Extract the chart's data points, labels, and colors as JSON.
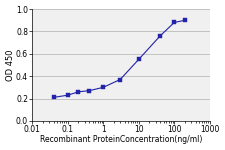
{
  "x": [
    0.04,
    0.1,
    0.2,
    0.4,
    1.0,
    3.0,
    10.0,
    40.0,
    100.0,
    200.0
  ],
  "y": [
    0.21,
    0.23,
    0.26,
    0.27,
    0.3,
    0.37,
    0.55,
    0.76,
    0.88,
    0.9
  ],
  "line_color": "#2222aa",
  "marker": "s",
  "marker_color": "#2222aa",
  "marker_size": 2.5,
  "xlabel": "Recombinant ProteinConcentration(ng/ml)",
  "ylabel": "OD 450",
  "xlim": [
    0.01,
    1000
  ],
  "ylim": [
    0,
    1
  ],
  "yticks": [
    0,
    0.2,
    0.4,
    0.6,
    0.8,
    1
  ],
  "xticks": [
    0.01,
    0.1,
    1,
    10,
    100,
    1000
  ],
  "xtick_labels": [
    "0.01",
    "0.1",
    "1",
    "10",
    "100",
    "1000"
  ],
  "grid_color": "#bbbbbb",
  "background_color": "#f0f0f0",
  "xlabel_fontsize": 5.5,
  "ylabel_fontsize": 6,
  "tick_fontsize": 5.5,
  "linewidth": 0.8
}
